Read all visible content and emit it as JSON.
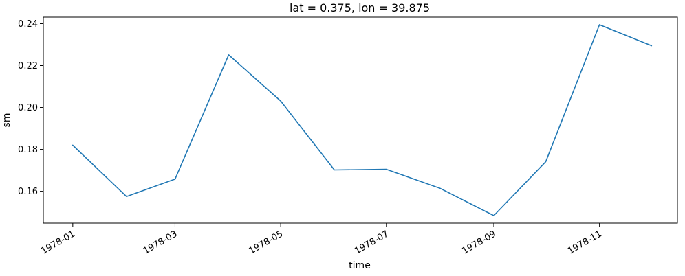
{
  "chart_data": {
    "type": "line",
    "title": "lat = 0.375, lon = 39.875",
    "xlabel": "time",
    "ylabel": "sm",
    "x": [
      "1978-01-01",
      "1978-02-01",
      "1978-03-01",
      "1978-04-01",
      "1978-05-01",
      "1978-06-01",
      "1978-07-01",
      "1978-08-01",
      "1978-09-01",
      "1978-10-01",
      "1978-11-01",
      "1978-12-01"
    ],
    "series": [
      {
        "values": [
          0.182,
          0.1575,
          0.1658,
          0.2251,
          0.2031,
          0.1702,
          0.1705,
          0.1614,
          0.1484,
          0.1741,
          0.2395,
          0.2295
        ],
        "color": "#1f77b4"
      }
    ],
    "xticks": [
      "1978-01",
      "1978-03",
      "1978-05",
      "1978-07",
      "1978-09",
      "1978-11"
    ],
    "yticks": [
      "0.16",
      "0.18",
      "0.20",
      "0.22",
      "0.24"
    ],
    "ylim": [
      0.1448,
      0.2431
    ],
    "xlim": [
      "1977-12-15",
      "1978-12-16"
    ],
    "grid": false,
    "legend": "none"
  }
}
